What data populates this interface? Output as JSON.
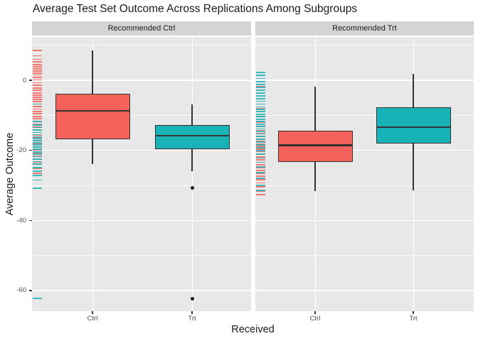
{
  "title": "Average Test Set Outcome Across Replications Among Subgroups",
  "axes": {
    "x_title": "Received",
    "y_title": "Average Outcome"
  },
  "colors": {
    "received_ctrl": "#F5625C",
    "received_trt": "#17B3B6",
    "panel_bg": "#E8E8E8",
    "strip_bg": "#D4D4D4",
    "gridline": "#FFFFFF",
    "box_stroke": "#333333",
    "outlier": "#1A1A1A",
    "axis_text": "#4D4D4D",
    "title_text": "#1A1A1A"
  },
  "chart_data": {
    "type": "boxplot",
    "title": "Average Test Set Outcome Across Replications Among Subgroups",
    "xlabel": "Received",
    "ylabel": "Average Outcome",
    "categories": [
      "Ctrl",
      "Trt"
    ],
    "y_major_ticks": [
      0,
      -20,
      -40,
      -60
    ],
    "y_minor_gridlines": [
      10,
      -10,
      -30,
      -50
    ],
    "ylim": [
      -66,
      12.4
    ],
    "grid": "on",
    "legend": "none",
    "facets": [
      {
        "label": "Recommended Ctrl",
        "boxes": [
          {
            "category": "Ctrl",
            "series": "received_ctrl",
            "whisker_low": -24.0,
            "q1": -16.8,
            "median": -8.7,
            "q3": -3.8,
            "whisker_high": 8.5,
            "outliers": []
          },
          {
            "category": "Trt",
            "series": "received_trt",
            "whisker_low": -25.9,
            "q1": -19.7,
            "median": -15.8,
            "q3": -12.7,
            "whisker_high": -6.8,
            "outliers": [
              -30.8,
              -62.3
            ]
          }
        ],
        "rug": {
          "received_ctrl": [
            8.5,
            7.0,
            6.0,
            5.2,
            4.5,
            3.9,
            3.3,
            2.7,
            2.1,
            1.5,
            0.8,
            0.1,
            -0.7,
            -1.5,
            -2.2,
            -2.9,
            -3.6,
            -4.2,
            -4.8,
            -5.4,
            -6.1,
            -6.8,
            -7.5,
            -8.2,
            -8.9,
            -9.6,
            -10.3,
            -11.0,
            -11.7,
            -12.5,
            -13.3,
            -14.1,
            -14.9,
            -15.7,
            -16.5,
            -17.3,
            -18.1,
            -19.0,
            -19.9,
            -20.8,
            -21.7,
            -22.6,
            -23.4,
            -24.0,
            -25.2,
            -26.6
          ],
          "received_trt": [
            -6.8,
            -11.8,
            -12.7,
            -13.5,
            -14.2,
            -14.9,
            -15.5,
            -16.1,
            -16.7,
            -17.3,
            -17.9,
            -18.5,
            -19.1,
            -19.7,
            -20.4,
            -21.1,
            -21.8,
            -22.5,
            -23.2,
            -24.0,
            -24.9,
            -25.9,
            -27.1,
            -28.5,
            -30.8,
            -62.3
          ]
        }
      },
      {
        "label": "Recommended Trt",
        "boxes": [
          {
            "category": "Ctrl",
            "series": "received_ctrl",
            "whisker_low": -31.7,
            "q1": -23.4,
            "median": -18.5,
            "q3": -14.3,
            "whisker_high": -1.9,
            "outliers": []
          },
          {
            "category": "Trt",
            "series": "received_trt",
            "whisker_low": -31.4,
            "q1": -18.0,
            "median": -13.4,
            "q3": -7.8,
            "whisker_high": 1.8,
            "outliers": []
          }
        ],
        "rug": {
          "received_ctrl": [
            -1.9,
            -8.0,
            -10.3,
            -12.0,
            -13.2,
            -14.3,
            -15.2,
            -16.0,
            -16.8,
            -17.5,
            -18.2,
            -18.9,
            -19.6,
            -20.3,
            -21.1,
            -21.9,
            -22.7,
            -23.4,
            -24.1,
            -24.9,
            -25.7,
            -26.5,
            -27.4,
            -28.3,
            -29.3,
            -30.4,
            -31.7,
            -32.6
          ],
          "received_trt": [
            2.2,
            1.4,
            0.5,
            -0.4,
            -1.2,
            -2.0,
            -2.8,
            -3.6,
            -4.4,
            -5.2,
            -6.0,
            -6.8,
            -7.6,
            -8.3,
            -9.0,
            -9.7,
            -10.4,
            -11.1,
            -11.8,
            -12.5,
            -13.2,
            -13.9,
            -14.6,
            -15.3,
            -16.0,
            -16.8,
            -17.6,
            -18.4,
            -19.2,
            -20.1,
            -21.1,
            -22.2,
            -23.4,
            -24.8,
            -26.3,
            -28.0,
            -30.0,
            -31.4
          ]
        }
      }
    ]
  }
}
